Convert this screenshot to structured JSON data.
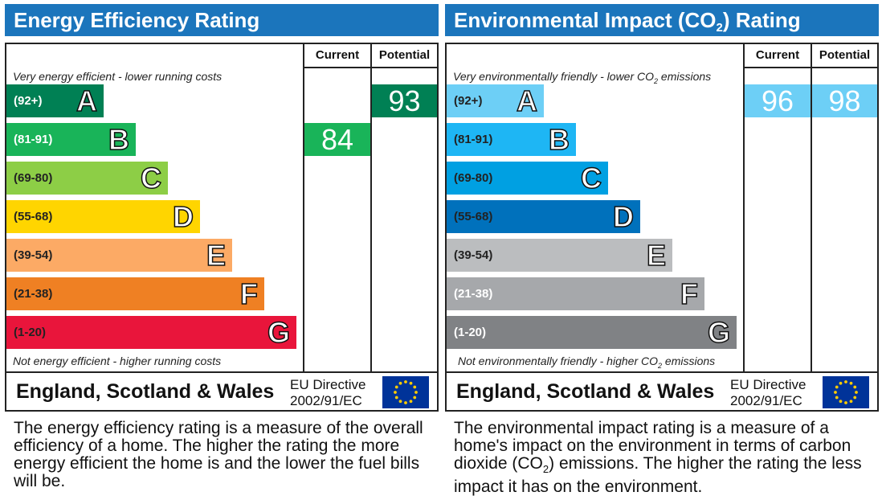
{
  "energy_efficiency": {
    "title": "Energy Efficiency Rating",
    "current_header": "Current",
    "potential_header": "Potential",
    "top_caption": "Very energy efficient - lower running costs",
    "bottom_caption": "Not energy efficient - higher running costs",
    "footer_country": "England, Scotland & Wales",
    "footer_directive_line1": "EU Directive",
    "footer_directive_line2": "2002/91/EC",
    "description": "The energy efficiency rating is a measure of the overall efficiency of a home. The higher the rating the more energy efficient the home is and the lower the fuel bills will be."
  },
  "environmental_impact": {
    "title_prefix": "Environmental Impact (CO",
    "title_sub": "2",
    "title_suffix": ") Rating",
    "current_header": "Current",
    "potential_header": "Potential",
    "top_caption_prefix": "Very environmentally friendly - lower CO",
    "top_caption_sub": "2",
    "top_caption_suffix": " emissions",
    "bottom_caption_prefix": "Not environmentally friendly - higher CO",
    "bottom_caption_sub": "2",
    "bottom_caption_suffix": " emissions",
    "footer_country": "England, Scotland & Wales",
    "footer_directive_line1": "EU Directive",
    "footer_directive_line2": "2002/91/EC",
    "description_part1": "The environmental impact rating is a measure of a home's impact on the environment in terms of carbon dioxide (CO",
    "description_sub": "2",
    "description_part2": ") emissions. The higher the rating the less impact it has on the environment."
  },
  "chart_data": [
    {
      "type": "bar",
      "title": "Energy Efficiency Rating",
      "bands": [
        {
          "range": "(92+)",
          "letter": "A",
          "color": "#008054",
          "text_color": "#ffffff"
        },
        {
          "range": "(81-91)",
          "letter": "B",
          "color": "#19b459",
          "text_color": "#ffffff"
        },
        {
          "range": "(69-80)",
          "letter": "C",
          "color": "#8dce46",
          "text_color": "#222222"
        },
        {
          "range": "(55-68)",
          "letter": "D",
          "color": "#ffd500",
          "text_color": "#222222"
        },
        {
          "range": "(39-54)",
          "letter": "E",
          "color": "#fcaa65",
          "text_color": "#222222"
        },
        {
          "range": "(21-38)",
          "letter": "F",
          "color": "#ef8023",
          "text_color": "#222222"
        },
        {
          "range": "(1-20)",
          "letter": "G",
          "color": "#e9153b",
          "text_color": "#222222"
        }
      ],
      "current": {
        "value": 84,
        "band": "B",
        "color": "#19b459"
      },
      "potential": {
        "value": 93,
        "band": "A",
        "color": "#008054"
      }
    },
    {
      "type": "bar",
      "title": "Environmental Impact (CO2) Rating",
      "bands": [
        {
          "range": "(92+)",
          "letter": "A",
          "color": "#6dcff6",
          "text_color": "#222222"
        },
        {
          "range": "(81-91)",
          "letter": "B",
          "color": "#1eb6f4",
          "text_color": "#222222"
        },
        {
          "range": "(69-80)",
          "letter": "C",
          "color": "#00a0e2",
          "text_color": "#222222"
        },
        {
          "range": "(55-68)",
          "letter": "D",
          "color": "#0071bc",
          "text_color": "#222222"
        },
        {
          "range": "(39-54)",
          "letter": "E",
          "color": "#bbbdbf",
          "text_color": "#222222"
        },
        {
          "range": "(21-38)",
          "letter": "F",
          "color": "#a6a8ab",
          "text_color": "#ffffff"
        },
        {
          "range": "(1-20)",
          "letter": "G",
          "color": "#808285",
          "text_color": "#ffffff"
        }
      ],
      "current": {
        "value": 96,
        "band": "A",
        "color": "#6dcff6"
      },
      "potential": {
        "value": 98,
        "band": "A",
        "color": "#6dcff6"
      }
    }
  ]
}
